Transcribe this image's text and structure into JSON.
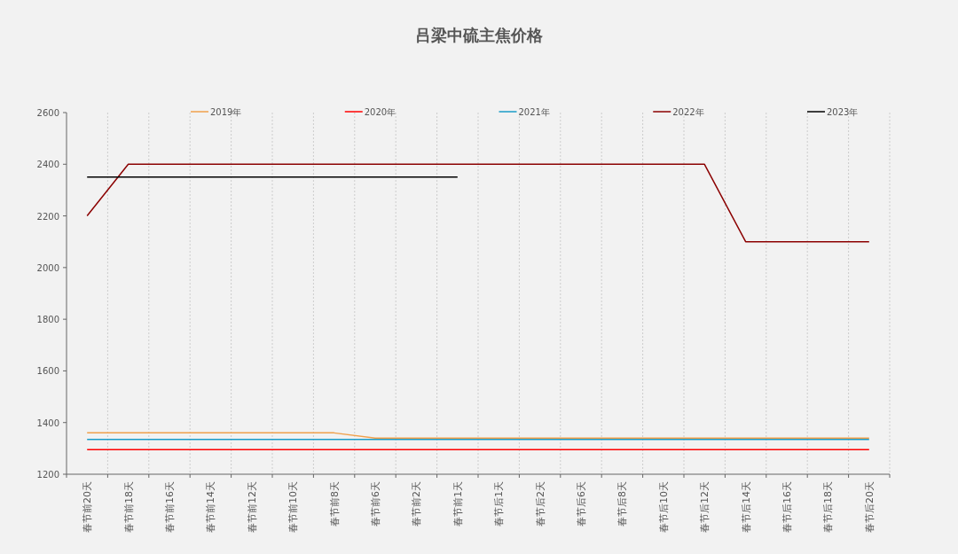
{
  "chart_data": {
    "type": "line",
    "title": "吕梁中硫主焦价格",
    "categories": [
      "春节前20天",
      "春节前18天",
      "春节前16天",
      "春节前14天",
      "春节前12天",
      "春节前10天",
      "春节前8天",
      "春节前6天",
      "春节前2天",
      "春节前1天",
      "春节后1天",
      "春节后2天",
      "春节后6天",
      "春节后8天",
      "春节后10天",
      "春节后12天",
      "春节后14天",
      "春节后16天",
      "春节后18天",
      "春节后20天"
    ],
    "series": [
      {
        "name": "2019年",
        "color": "#f0a04b",
        "values": [
          1360,
          1360,
          1360,
          1360,
          1360,
          1360,
          1360,
          1340,
          1340,
          1340,
          1340,
          1340,
          1340,
          1340,
          1340,
          1340,
          1340,
          1340,
          1340,
          1340
        ]
      },
      {
        "name": "2020年",
        "color": "#ff0000",
        "values": [
          1295,
          1295,
          1295,
          1295,
          1295,
          1295,
          1295,
          1295,
          1295,
          1295,
          1295,
          1295,
          1295,
          1295,
          1295,
          1295,
          1295,
          1295,
          1295,
          1295
        ]
      },
      {
        "name": "2021年",
        "color": "#1a9bc7",
        "values": [
          1335,
          1335,
          1335,
          1335,
          1335,
          1335,
          1335,
          1335,
          1335,
          1335,
          1335,
          1335,
          1335,
          1335,
          1335,
          1335,
          1335,
          1335,
          1335,
          1335
        ]
      },
      {
        "name": "2022年",
        "color": "#8b0000",
        "values": [
          2200,
          2400,
          2400,
          2400,
          2400,
          2400,
          2400,
          2400,
          2400,
          2400,
          2400,
          2400,
          2400,
          2400,
          2400,
          2400,
          2100,
          2100,
          2100,
          2100
        ]
      },
      {
        "name": "2023年",
        "color": "#000000",
        "values": [
          2350,
          2350,
          2350,
          2350,
          2350,
          2350,
          2350,
          2350,
          2350,
          2350,
          null,
          null,
          null,
          null,
          null,
          null,
          null,
          null,
          null,
          null
        ]
      }
    ],
    "ylim": [
      1200,
      2600
    ],
    "yticks": [
      1200,
      1400,
      1600,
      1800,
      2000,
      2200,
      2400,
      2600
    ],
    "grid": "x",
    "legend": "top",
    "marker": "none",
    "line_style": "solid"
  }
}
